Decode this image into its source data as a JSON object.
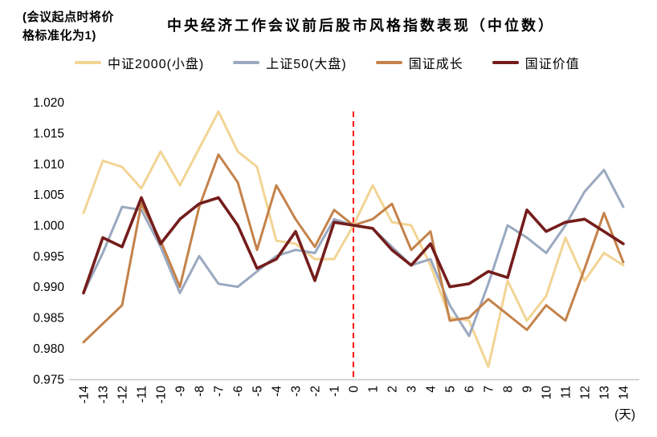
{
  "header": {
    "note_line1": "(会议起点时将价",
    "note_line2": "格标准化为1)",
    "title": "中央经济工作会议前后股市风格指数表现（中位数）"
  },
  "legend": {
    "items": [
      {
        "label": "中证2000(小盘)",
        "color": "#F2D494"
      },
      {
        "label": "上证50(大盘)",
        "color": "#9AA9C0"
      },
      {
        "label": "国证成长",
        "color": "#C4824A"
      },
      {
        "label": "国证价值",
        "color": "#741D1B"
      }
    ]
  },
  "chart_data": {
    "type": "line",
    "title": "中央经济工作会议前后股市风格指数表现（中位数）",
    "note": "(会议起点时将价格标准化为1)",
    "xlabel": "(天)",
    "x_axis_unit": "(天)",
    "ylim": [
      0.975,
      1.02
    ],
    "grid": "off",
    "legend_position": "top",
    "y_ticks": [
      "1.020",
      "1.015",
      "1.010",
      "1.005",
      "1.000",
      "0.995",
      "0.990",
      "0.985",
      "0.980",
      "0.975"
    ],
    "x": [
      -14,
      -13,
      -12,
      -11,
      -10,
      -9,
      -8,
      -7,
      -6,
      -5,
      -4,
      -3,
      -2,
      -1,
      0,
      1,
      2,
      3,
      4,
      5,
      6,
      7,
      8,
      9,
      10,
      11,
      12,
      13,
      14
    ],
    "event_line": {
      "x": 0,
      "color": "#FF0000",
      "style": "dashed"
    },
    "series": [
      {
        "name": "中证2000(小盘)",
        "color": "#F2D494",
        "width": 3,
        "values": [
          1.002,
          1.0105,
          1.0095,
          1.006,
          1.012,
          1.0065,
          1.0125,
          1.0185,
          1.012,
          1.0095,
          0.9975,
          0.997,
          0.9945,
          0.9945,
          1.0,
          1.0065,
          1.0005,
          1.0,
          0.9935,
          0.985,
          0.9845,
          0.977,
          0.991,
          0.9845,
          0.9885,
          0.998,
          0.991,
          0.9955,
          0.9935
        ]
      },
      {
        "name": "上证50(大盘)",
        "color": "#9AA9C0",
        "width": 3,
        "values": [
          0.989,
          0.9955,
          1.003,
          1.0025,
          0.9965,
          0.989,
          0.995,
          0.9905,
          0.99,
          0.9925,
          0.995,
          0.996,
          0.9955,
          1.001,
          1.0,
          0.9995,
          0.9965,
          0.9935,
          0.9945,
          0.987,
          0.982,
          0.9905,
          1.0,
          0.998,
          0.9955,
          1.0,
          1.0055,
          1.009,
          1.003
        ]
      },
      {
        "name": "国证成长",
        "color": "#C4824A",
        "width": 3,
        "values": [
          0.981,
          0.984,
          0.987,
          1.0035,
          0.9975,
          0.99,
          1.003,
          1.0115,
          1.007,
          0.996,
          1.0065,
          1.001,
          0.9965,
          1.0025,
          1.0,
          1.001,
          1.0035,
          0.996,
          0.999,
          0.9845,
          0.985,
          0.988,
          0.9855,
          0.983,
          0.987,
          0.9845,
          0.993,
          1.002,
          0.994
        ]
      },
      {
        "name": "国证价值",
        "color": "#741D1B",
        "width": 3.6,
        "values": [
          0.989,
          0.998,
          0.9965,
          1.0045,
          0.997,
          1.001,
          1.0035,
          1.0045,
          1.0,
          0.993,
          0.9945,
          0.999,
          0.991,
          1.0005,
          1.0,
          0.9995,
          0.996,
          0.9935,
          0.997,
          0.99,
          0.9905,
          0.9925,
          0.9915,
          1.0025,
          0.999,
          1.0005,
          1.001,
          0.999,
          0.997
        ]
      }
    ]
  }
}
